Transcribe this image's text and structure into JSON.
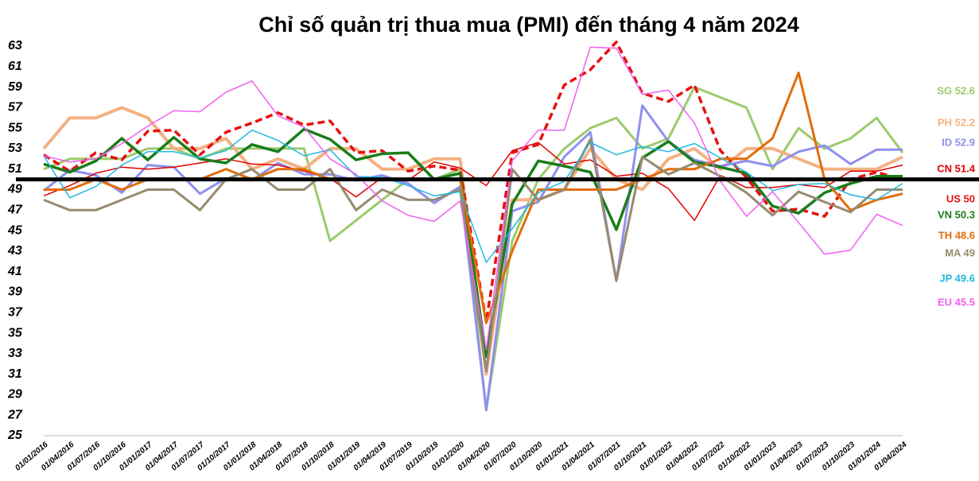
{
  "chart_data": {
    "type": "line",
    "title": "Chỉ số quản trị thua mua (PMI) đến tháng 4 năm 2024",
    "categories": [
      "01/01/2016",
      "01/04/2016",
      "01/07/2016",
      "01/10/2016",
      "01/01/2017",
      "01/04/2017",
      "01/07/2017",
      "01/10/2017",
      "01/01/2018",
      "01/04/2018",
      "01/07/2018",
      "01/10/2018",
      "01/01/2019",
      "01/04/2019",
      "01/07/2019",
      "01/10/2019",
      "01/01/2020",
      "01/04/2020",
      "01/07/2020",
      "01/10/2020",
      "01/01/2021",
      "01/04/2021",
      "01/07/2021",
      "01/10/2021",
      "01/01/2022",
      "01/04/2022",
      "01/07/2022",
      "01/10/2022",
      "01/01/2023",
      "01/04/2023",
      "01/07/2023",
      "01/10/2023",
      "01/01/2024",
      "01/04/2024"
    ],
    "ylim": [
      25,
      63
    ],
    "yticks": [
      25,
      27,
      29,
      31,
      33,
      35,
      37,
      39,
      41,
      43,
      45,
      47,
      49,
      51,
      53,
      55,
      57,
      59,
      61,
      63
    ],
    "reference_line": 50,
    "series": [
      {
        "name": "SG 52.6",
        "color": "#9bcb6c",
        "width": 3,
        "values": [
          51,
          52,
          52,
          52,
          53,
          53,
          52,
          53,
          53,
          53,
          53,
          44,
          46,
          48,
          50,
          50,
          51,
          27.5,
          44,
          50,
          53,
          55,
          56,
          53,
          54,
          59,
          58,
          57,
          51,
          55,
          53,
          54,
          56,
          52.6
        ]
      },
      {
        "name": "PH 52.2",
        "color": "#f4b183",
        "width": 4,
        "values": [
          53,
          56,
          56,
          57,
          56,
          53,
          53,
          54,
          51,
          52,
          51,
          53,
          53,
          51,
          51,
          52,
          52,
          31,
          48,
          48,
          49,
          53,
          50,
          49,
          52,
          53,
          51,
          53,
          53,
          52,
          51,
          51,
          51,
          52.2
        ]
      },
      {
        "name": "ID 52.9",
        "color": "#8f8ff0",
        "width": 3,
        "values": [
          48.9,
          50.9,
          50.4,
          48.7,
          51.4,
          51.2,
          48.6,
          50.1,
          49.9,
          51.6,
          50.5,
          50.5,
          49.9,
          50.4,
          49.6,
          47.7,
          49.3,
          27.5,
          46.9,
          47.8,
          52.2,
          54.6,
          40.1,
          57.2,
          53.7,
          51.9,
          51.3,
          51.8,
          51.3,
          52.7,
          53.3,
          51.5,
          52.9,
          52.9
        ]
      },
      {
        "name": "CN 51.4",
        "color": "#e00000",
        "width": 1.5,
        "values": [
          48.4,
          49.4,
          50.6,
          51.2,
          51,
          51.2,
          51.6,
          52,
          51.5,
          51.4,
          50.8,
          50.1,
          48.3,
          50.2,
          49.9,
          51.7,
          51.1,
          49.4,
          52.8,
          53.6,
          51.5,
          51.9,
          50.3,
          50.6,
          49.1,
          46,
          50.4,
          49.2,
          49.2,
          49.5,
          49.2,
          50.8,
          50.8,
          51.4
        ]
      },
      {
        "name": "US 50",
        "color": "#e81010",
        "width": 3.5,
        "dashed": true,
        "values": [
          52.4,
          50.8,
          52.6,
          51.9,
          54.7,
          54.8,
          52.4,
          54.6,
          55.5,
          56.5,
          55.3,
          55.7,
          52.6,
          52.8,
          50.8,
          51.3,
          50.9,
          36.1,
          52.6,
          53.4,
          59.2,
          60.7,
          63.4,
          58.4,
          57.6,
          59.2,
          52.8,
          50.2,
          46.9,
          47.1,
          46.4,
          50,
          50.7,
          50
        ]
      },
      {
        "name": "VN 50.3",
        "color": "#1a7d1a",
        "width": 3.5,
        "values": [
          51.5,
          50.7,
          51.8,
          54,
          51.9,
          54.1,
          52,
          51.6,
          53.4,
          52.7,
          54.9,
          53.9,
          51.9,
          52.5,
          52.6,
          50,
          50.6,
          32.7,
          47.6,
          51.8,
          51.3,
          50.7,
          45.1,
          52.1,
          53.7,
          51.7,
          51.2,
          50.6,
          47.4,
          46.7,
          48.7,
          49.6,
          50.3,
          50.3
        ]
      },
      {
        "name": "TH 48.6",
        "color": "#e36c09",
        "width": 3,
        "values": [
          49,
          49,
          50,
          49,
          50,
          50,
          50,
          51,
          50,
          51,
          51,
          50,
          50,
          50,
          50,
          50,
          50,
          36,
          43,
          49,
          49,
          49,
          49,
          50,
          51,
          51,
          52,
          52,
          54,
          60.4,
          50,
          47,
          48,
          48.6
        ]
      },
      {
        "name": "MA 49",
        "color": "#978a6e",
        "width": 3,
        "values": [
          48,
          47,
          47,
          48,
          49,
          49,
          47,
          50,
          51,
          49,
          49,
          51,
          47,
          49,
          48,
          48,
          49,
          31.3,
          51,
          48,
          49,
          53.9,
          40.1,
          52.2,
          50.5,
          51.6,
          50.3,
          48.7,
          46.5,
          48.8,
          47.8,
          46.8,
          49,
          49
        ]
      },
      {
        "name": "JP 49.6",
        "color": "#22b8e0",
        "width": 1.5,
        "values": [
          52.3,
          48.2,
          49.3,
          51.4,
          52.7,
          52.7,
          52.1,
          52.8,
          54.8,
          53.8,
          52.3,
          52.9,
          50.3,
          50.2,
          49.4,
          48.4,
          48.8,
          41.9,
          45.2,
          48.7,
          49.8,
          53.6,
          52.4,
          53.2,
          52.7,
          53.5,
          52.1,
          50.7,
          48.9,
          49.5,
          49.6,
          48.5,
          48,
          49.6
        ]
      },
      {
        "name": "EU 45.5",
        "color": "#f060f0",
        "width": 1.5,
        "values": [
          52.3,
          51.7,
          52,
          53.5,
          55.2,
          56.7,
          56.6,
          58.5,
          59.6,
          56.2,
          55.1,
          52,
          50.5,
          47.9,
          46.5,
          45.9,
          47.9,
          33.4,
          51.8,
          54.8,
          54.8,
          62.9,
          62.8,
          58.3,
          58.7,
          55.5,
          49.8,
          46.4,
          48.8,
          45.8,
          42.7,
          43.1,
          46.6,
          45.5
        ]
      }
    ]
  }
}
